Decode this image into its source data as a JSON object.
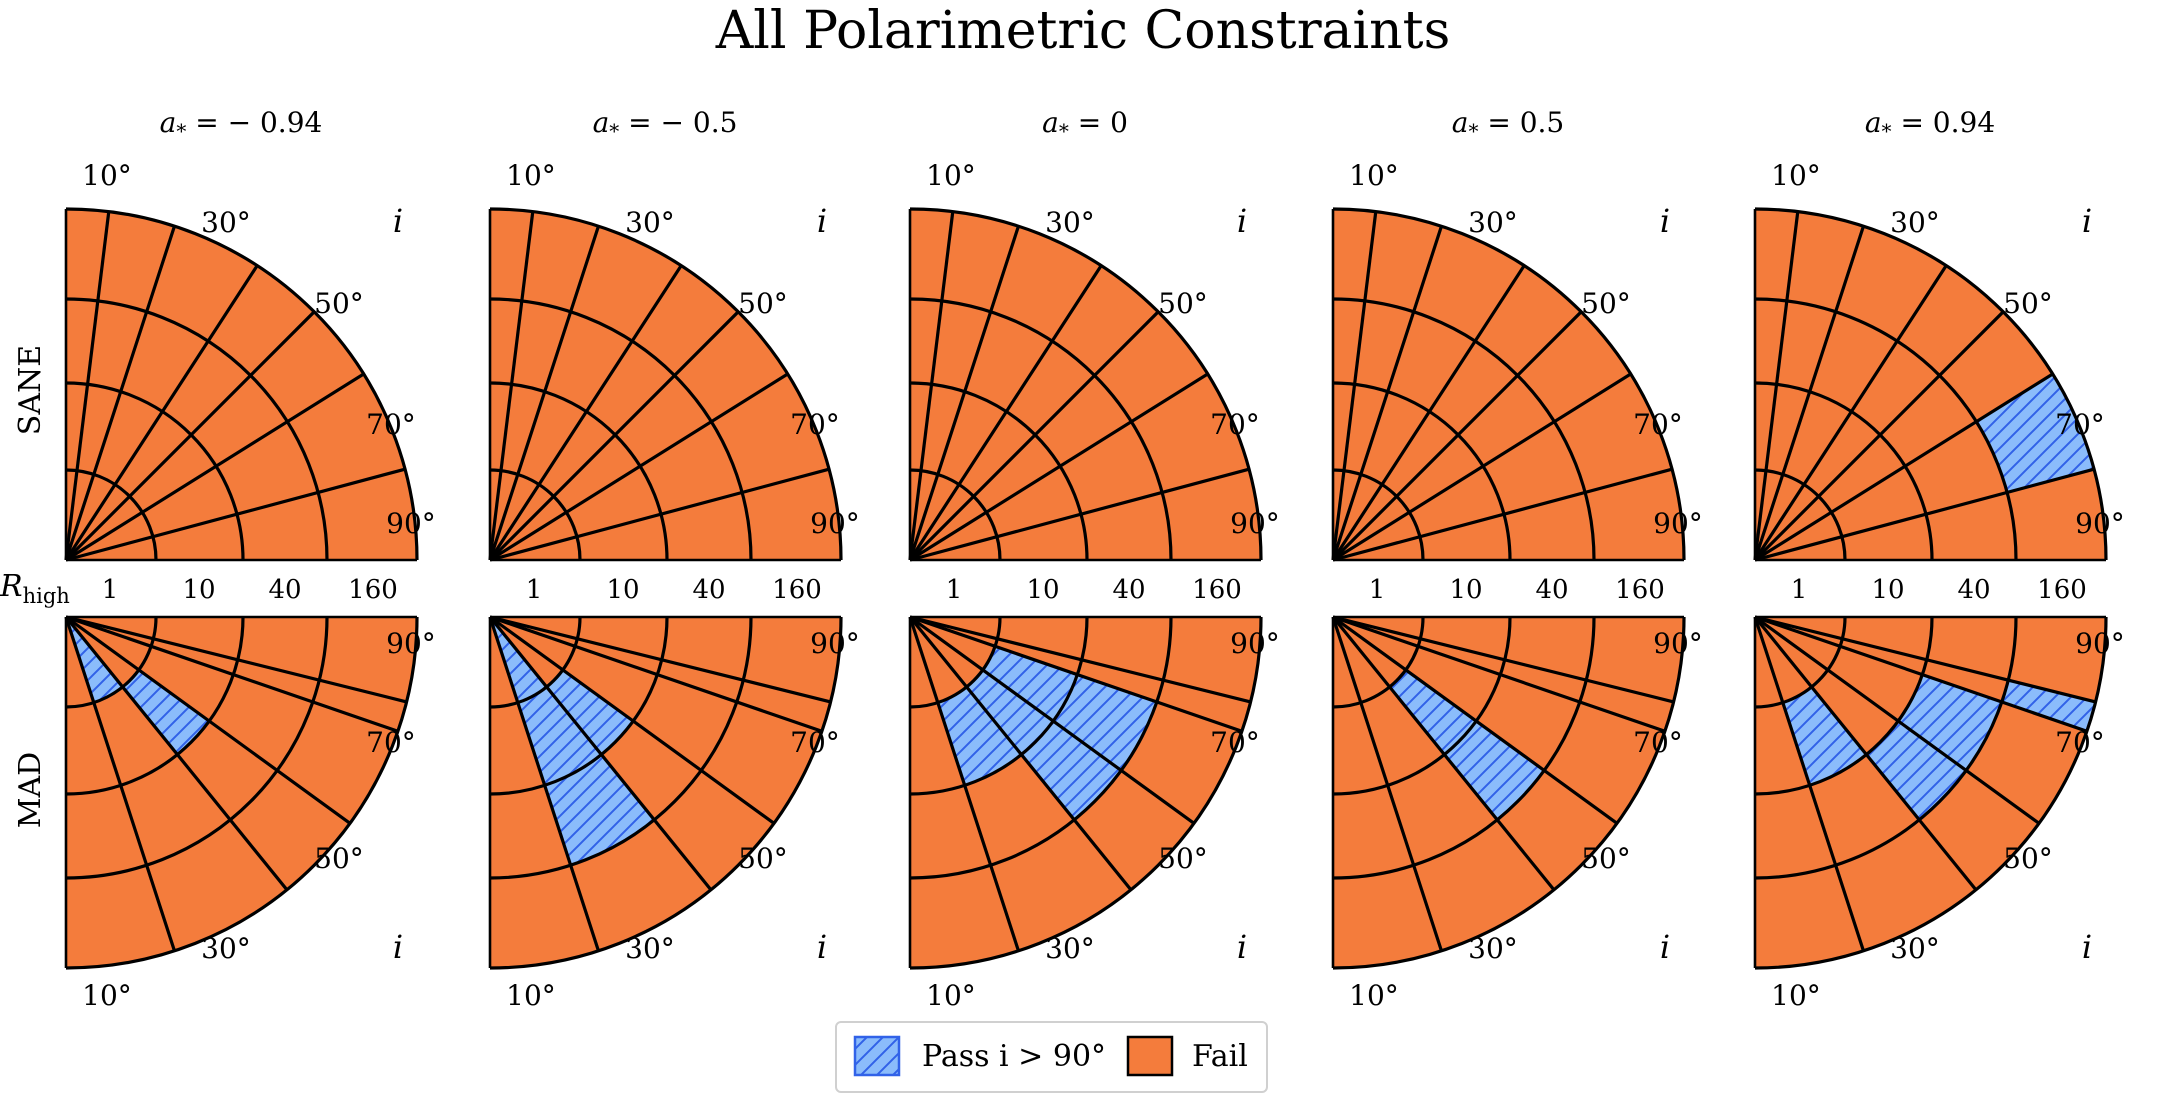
{
  "chart_data": {
    "type": "polar-grid",
    "title": "All Polarimetric Constraints",
    "columns": [
      {
        "prefix": "a",
        "subscript": "*",
        "text": " = − 0.94"
      },
      {
        "prefix": "a",
        "subscript": "*",
        "text": " = − 0.5"
      },
      {
        "prefix": "a",
        "subscript": "*",
        "text": " = 0"
      },
      {
        "prefix": "a",
        "subscript": "*",
        "text": " = 0.5"
      },
      {
        "prefix": "a",
        "subscript": "*",
        "text": " = 0.94"
      }
    ],
    "rows": [
      "SANE",
      "MAD"
    ],
    "radial_axis": {
      "name": "R",
      "subscript": "high",
      "ticks": [
        "1",
        "10",
        "40",
        "160"
      ]
    },
    "angular_axis": {
      "name": "i",
      "ticks": [
        "10°",
        "30°",
        "50°",
        "70°",
        "90°"
      ]
    },
    "inclinations": [
      10,
      30,
      50,
      70,
      90
    ],
    "legend": [
      {
        "label": "Pass i > 90°",
        "color": "#8bbcfb",
        "hatch": "#3162e8"
      },
      {
        "label": "Fail",
        "color": "#f47c3c"
      }
    ],
    "pass_cells": [
      {
        "row": "SANE",
        "column": 4,
        "cells": [
          [
            3,
            1
          ]
        ]
      },
      {
        "row": "MAD",
        "column": 0,
        "cells": [
          [
            0,
            4
          ],
          [
            1,
            3
          ]
        ]
      },
      {
        "row": "MAD",
        "column": 1,
        "cells": [
          [
            0,
            4
          ],
          [
            1,
            4
          ],
          [
            1,
            3
          ],
          [
            2,
            4
          ]
        ]
      },
      {
        "row": "MAD",
        "column": 2,
        "cells": [
          [
            1,
            4
          ],
          [
            1,
            3
          ],
          [
            1,
            2
          ],
          [
            2,
            3
          ],
          [
            2,
            2
          ]
        ]
      },
      {
        "row": "MAD",
        "column": 3,
        "cells": [
          [
            1,
            3
          ],
          [
            2,
            3
          ]
        ]
      },
      {
        "row": "MAD",
        "column": 4,
        "cells": [
          [
            1,
            4
          ],
          [
            2,
            2
          ],
          [
            2,
            3
          ],
          [
            3,
            1
          ]
        ]
      }
    ]
  }
}
